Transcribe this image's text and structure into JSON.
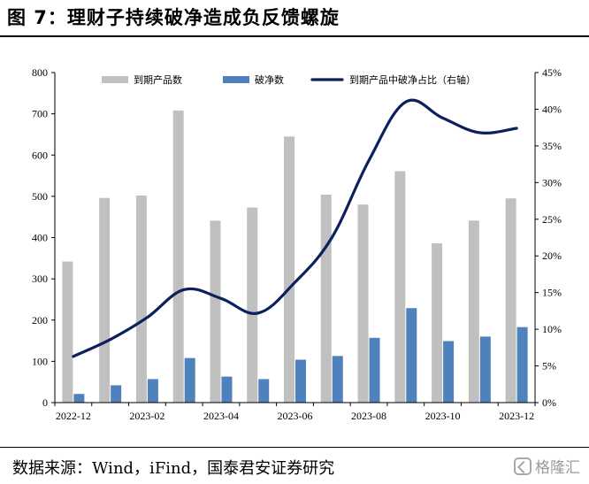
{
  "header": {
    "title": "图 7：理财子持续破净造成负反馈螺旋"
  },
  "footer": {
    "source": "数据来源：Wind，iFind，国泰君安证券研究",
    "watermark": "格隆汇"
  },
  "colors": {
    "bar_matured": "#c0c0c0",
    "bar_below_par": "#4f81bd",
    "line_ratio": "#0d1f5c",
    "axis": "#000000"
  },
  "chart_data": {
    "type": "bar",
    "categories": [
      "2022-12",
      "2023-01",
      "2023-02",
      "2023-03",
      "2023-04",
      "2023-05",
      "2023-06",
      "2023-07",
      "2023-08",
      "2023-09",
      "2023-10",
      "2023-11",
      "2023-12"
    ],
    "x_tick_labels": [
      "2022-12",
      "2023-02",
      "2023-04",
      "2023-06",
      "2023-08",
      "2023-10",
      "2023-12"
    ],
    "series": [
      {
        "name": "到期产品数",
        "type": "bar",
        "axis": "left",
        "values": [
          342,
          496,
          502,
          708,
          441,
          473,
          645,
          504,
          480,
          561,
          386,
          441,
          495
        ]
      },
      {
        "name": "破净数",
        "type": "bar",
        "axis": "left",
        "values": [
          21,
          42,
          57,
          108,
          63,
          57,
          104,
          113,
          157,
          229,
          149,
          160,
          183
        ]
      },
      {
        "name": "到期产品中破净占比（右轴）",
        "type": "line",
        "axis": "right",
        "values": [
          6.3,
          8.6,
          11.6,
          15.4,
          14.2,
          12.2,
          16.4,
          22.5,
          33.0,
          41.0,
          38.8,
          36.8,
          37.4
        ]
      }
    ],
    "y_left": {
      "min": 0,
      "max": 800,
      "step": 100,
      "ticks": [
        "0",
        "100",
        "200",
        "300",
        "400",
        "500",
        "600",
        "700",
        "800"
      ]
    },
    "y_right": {
      "min": 0,
      "max": 45,
      "step": 5,
      "ticks": [
        "0%",
        "5%",
        "10%",
        "15%",
        "20%",
        "25%",
        "30%",
        "35%",
        "40%",
        "45%"
      ]
    },
    "grid": false,
    "legend_position": "top"
  }
}
